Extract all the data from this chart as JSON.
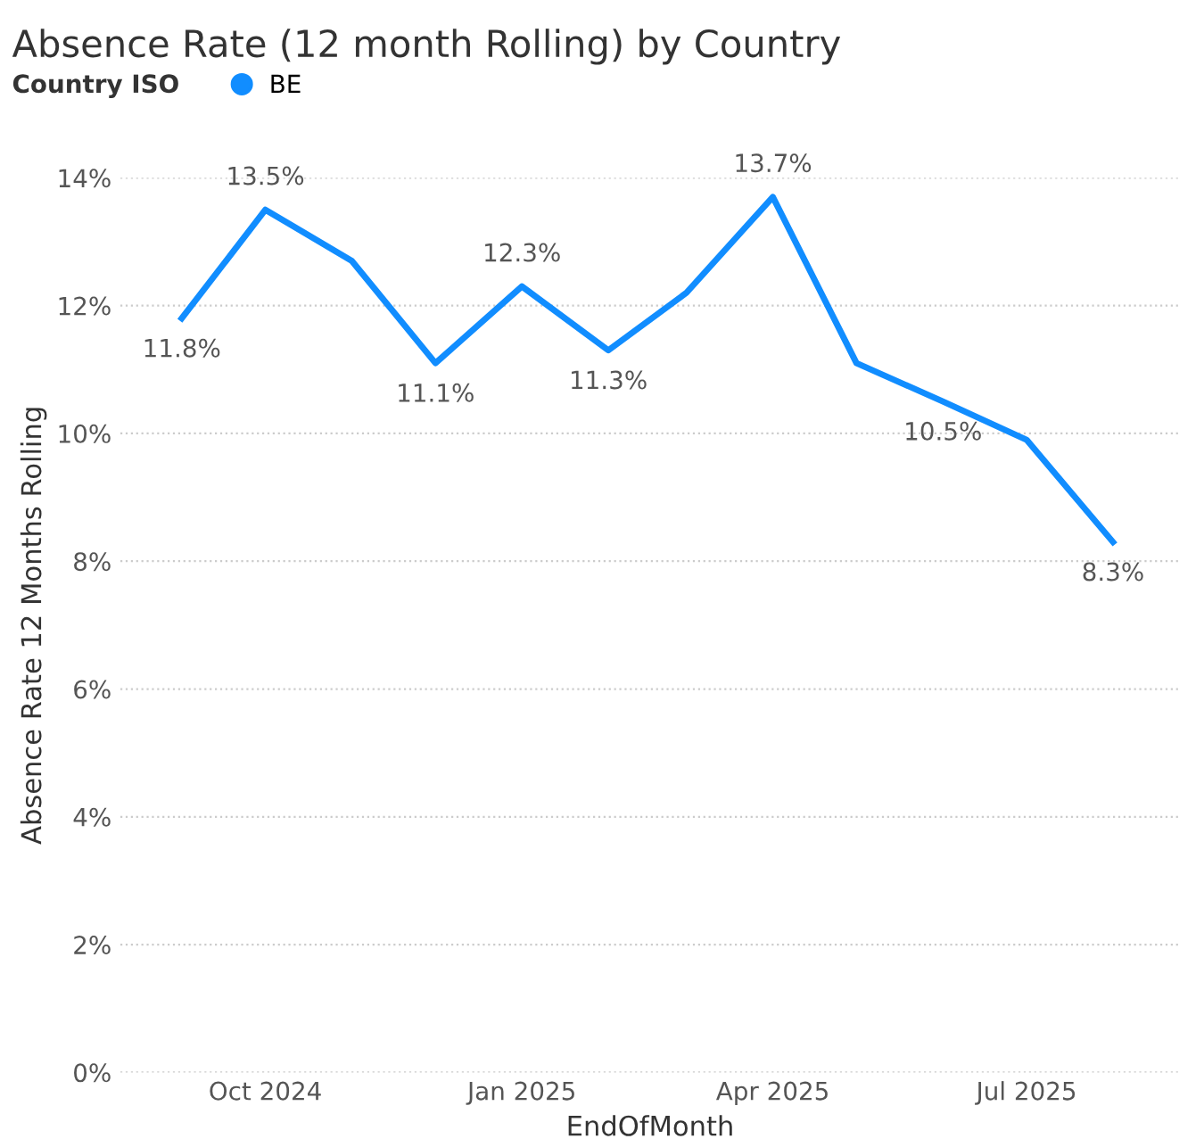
{
  "chart_data": {
    "type": "line",
    "title": "Absence Rate (12 month Rolling) by Country",
    "xlabel": "EndOfMonth",
    "ylabel": "Absence Rate 12 Months Rolling",
    "legend_title": "Country ISO",
    "legend": "top left",
    "grid": "y",
    "marker": "none",
    "line_style": "solid",
    "x": [
      "2024-09",
      "2024-10",
      "2024-11",
      "2024-12",
      "2025-01",
      "2025-02",
      "2025-03",
      "2025-04",
      "2025-05",
      "2025-06",
      "2025-07",
      "2025-08"
    ],
    "series": [
      {
        "name": "BE",
        "color": "#118dff",
        "values": [
          11.8,
          13.5,
          12.7,
          11.1,
          12.3,
          11.3,
          12.2,
          13.7,
          11.1,
          10.5,
          9.9,
          8.3
        ],
        "value_labels": [
          "11.8%",
          "13.5%",
          null,
          "11.1%",
          "12.3%",
          "11.3%",
          null,
          "13.7%",
          null,
          "10.5%",
          null,
          "8.3%"
        ]
      }
    ],
    "xlim": [
      "2024-08-10",
      "2025-08-25"
    ],
    "xticks": [
      {
        "value": "2024-10",
        "label": "Oct 2024"
      },
      {
        "value": "2025-01",
        "label": "Jan 2025"
      },
      {
        "value": "2025-04",
        "label": "Apr 2025"
      },
      {
        "value": "2025-07",
        "label": "Jul 2025"
      }
    ],
    "ylim": [
      0,
      14
    ],
    "yticks": [
      {
        "value": 0,
        "label": "0%"
      },
      {
        "value": 2,
        "label": "2%"
      },
      {
        "value": 4,
        "label": "4%"
      },
      {
        "value": 6,
        "label": "6%"
      },
      {
        "value": 8,
        "label": "8%"
      },
      {
        "value": 10,
        "label": "10%"
      },
      {
        "value": 12,
        "label": "12%"
      },
      {
        "value": 14,
        "label": "14%"
      }
    ]
  }
}
